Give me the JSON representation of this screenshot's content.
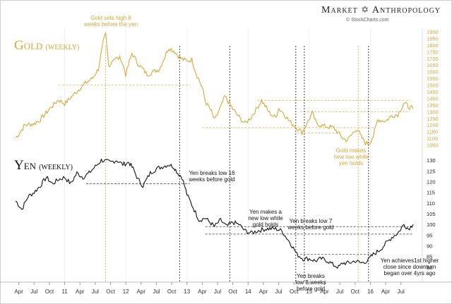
{
  "brand": {
    "word1": "Market",
    "word2": "Anthropology",
    "credit": "© StockCharts.com"
  },
  "chart_data": [
    {
      "type": "line",
      "panel": "top",
      "title": "Gold",
      "subtitle": "(WEEKLY)",
      "series_color": "#d8a838",
      "ylim": [
        1000,
        1900
      ],
      "yticks": [
        1050,
        1100,
        1150,
        1200,
        1250,
        1300,
        1350,
        1400,
        1450,
        1500,
        1550,
        1600,
        1650,
        1700,
        1750,
        1800,
        1850,
        1900
      ],
      "points": [
        [
          2010.2,
          1102
        ],
        [
          2010.35,
          1200
        ],
        [
          2010.5,
          1210
        ],
        [
          2010.6,
          1240
        ],
        [
          2010.75,
          1320
        ],
        [
          2010.9,
          1390
        ],
        [
          2011.0,
          1360
        ],
        [
          2011.15,
          1430
        ],
        [
          2011.3,
          1500
        ],
        [
          2011.45,
          1550
        ],
        [
          2011.55,
          1620
        ],
        [
          2011.63,
          1820
        ],
        [
          2011.67,
          1880
        ],
        [
          2011.72,
          1640
        ],
        [
          2011.8,
          1700
        ],
        [
          2011.92,
          1700
        ],
        [
          2012.0,
          1580
        ],
        [
          2012.1,
          1740
        ],
        [
          2012.2,
          1660
        ],
        [
          2012.35,
          1580
        ],
        [
          2012.45,
          1600
        ],
        [
          2012.55,
          1620
        ],
        [
          2012.7,
          1780
        ],
        [
          2012.78,
          1760
        ],
        [
          2012.9,
          1700
        ],
        [
          2013.0,
          1680
        ],
        [
          2013.08,
          1690
        ],
        [
          2013.15,
          1590
        ],
        [
          2013.25,
          1480
        ],
        [
          2013.3,
          1380
        ],
        [
          2013.4,
          1300
        ],
        [
          2013.45,
          1235
        ],
        [
          2013.55,
          1330
        ],
        [
          2013.62,
          1415
        ],
        [
          2013.75,
          1320
        ],
        [
          2013.85,
          1260
        ],
        [
          2013.95,
          1210
        ],
        [
          2014.05,
          1260
        ],
        [
          2014.15,
          1330
        ],
        [
          2014.22,
          1385
        ],
        [
          2014.35,
          1290
        ],
        [
          2014.45,
          1255
        ],
        [
          2014.5,
          1325
        ],
        [
          2014.58,
          1290
        ],
        [
          2014.68,
          1225
        ],
        [
          2014.8,
          1180
        ],
        [
          2014.88,
          1145
        ],
        [
          2014.95,
          1200
        ],
        [
          2015.05,
          1290
        ],
        [
          2015.12,
          1210
        ],
        [
          2015.25,
          1190
        ],
        [
          2015.4,
          1180
        ],
        [
          2015.55,
          1100
        ],
        [
          2015.62,
          1085
        ],
        [
          2015.78,
          1175
        ],
        [
          2015.85,
          1110
        ],
        [
          2015.92,
          1065
        ],
        [
          2015.98,
          1060
        ],
        [
          2016.05,
          1120
        ],
        [
          2016.12,
          1240
        ],
        [
          2016.25,
          1230
        ],
        [
          2016.35,
          1270
        ],
        [
          2016.45,
          1280
        ],
        [
          2016.55,
          1365
        ],
        [
          2016.62,
          1340
        ],
        [
          2016.7,
          1320
        ]
      ],
      "annotations": [
        {
          "text_lines": [
            "Gold sets high 8",
            "weeks before the yen"
          ],
          "color": "#d8a838"
        },
        {
          "text_lines": [
            "Gold makes",
            "new low while",
            "yen holds"
          ],
          "color": "#d8a838"
        }
      ]
    },
    {
      "type": "line",
      "panel": "bottom",
      "title": "Yen",
      "subtitle": "(WEEKLY)",
      "series_color": "#111111",
      "ylim": [
        78,
        133
      ],
      "yticks": [
        80,
        85,
        90,
        95,
        100,
        105,
        110,
        115,
        120,
        125,
        130
      ],
      "points": [
        [
          2010.2,
          111
        ],
        [
          2010.3,
          107
        ],
        [
          2010.4,
          113
        ],
        [
          2010.5,
          115
        ],
        [
          2010.6,
          118
        ],
        [
          2010.7,
          122
        ],
        [
          2010.8,
          119
        ],
        [
          2010.9,
          121
        ],
        [
          2011.0,
          122
        ],
        [
          2011.1,
          119
        ],
        [
          2011.2,
          124
        ],
        [
          2011.3,
          122
        ],
        [
          2011.4,
          124
        ],
        [
          2011.5,
          127
        ],
        [
          2011.6,
          130
        ],
        [
          2011.75,
          129
        ],
        [
          2011.85,
          130
        ],
        [
          2011.95,
          128
        ],
        [
          2012.05,
          129
        ],
        [
          2012.12,
          126
        ],
        [
          2012.2,
          121
        ],
        [
          2012.28,
          118
        ],
        [
          2012.4,
          124
        ],
        [
          2012.5,
          126
        ],
        [
          2012.6,
          127
        ],
        [
          2012.7,
          128
        ],
        [
          2012.78,
          127
        ],
        [
          2012.85,
          124
        ],
        [
          2012.92,
          122
        ],
        [
          2013.0,
          114
        ],
        [
          2013.1,
          108
        ],
        [
          2013.2,
          102
        ],
        [
          2013.3,
          103
        ],
        [
          2013.45,
          99
        ],
        [
          2013.55,
          102
        ],
        [
          2013.65,
          99
        ],
        [
          2013.75,
          101
        ],
        [
          2013.85,
          100
        ],
        [
          2013.95,
          97
        ],
        [
          2014.05,
          96
        ],
        [
          2014.15,
          97
        ],
        [
          2014.3,
          98
        ],
        [
          2014.45,
          98
        ],
        [
          2014.55,
          97
        ],
        [
          2014.65,
          93
        ],
        [
          2014.72,
          90
        ],
        [
          2014.8,
          86
        ],
        [
          2014.9,
          84
        ],
        [
          2015.0,
          84
        ],
        [
          2015.1,
          83
        ],
        [
          2015.2,
          84
        ],
        [
          2015.3,
          83
        ],
        [
          2015.4,
          81
        ],
        [
          2015.48,
          80
        ],
        [
          2015.55,
          82
        ],
        [
          2015.65,
          82
        ],
        [
          2015.75,
          83
        ],
        [
          2015.85,
          82
        ],
        [
          2015.95,
          83
        ],
        [
          2016.05,
          86
        ],
        [
          2016.15,
          88
        ],
        [
          2016.25,
          91
        ],
        [
          2016.35,
          94
        ],
        [
          2016.45,
          96
        ],
        [
          2016.55,
          100
        ],
        [
          2016.62,
          98
        ],
        [
          2016.7,
          100
        ]
      ],
      "annotations": [
        {
          "text_lines": [
            "Yen breaks low 16",
            "weeks before gold"
          ]
        },
        {
          "text_lines": [
            "Yen makes a",
            "new low while",
            "gold holds"
          ]
        },
        {
          "text_lines": [
            "Yen breaks low 7",
            "weeks before gold"
          ]
        },
        {
          "text_lines": [
            "Yen breaks",
            "low 8 weeks",
            "before gold"
          ]
        },
        {
          "text_lines": [
            "Yen achieves1st higher",
            "close since downturn",
            "began over 4yrs ago"
          ]
        }
      ]
    }
  ],
  "x_axis": {
    "range": [
      2010.15,
      2016.85
    ],
    "ticks": [
      {
        "label": "Apr",
        "x": 2010.25
      },
      {
        "label": "Jul",
        "x": 2010.5
      },
      {
        "label": "Oct",
        "x": 2010.75
      },
      {
        "label": "11",
        "x": 2011.0
      },
      {
        "label": "Apr",
        "x": 2011.25
      },
      {
        "label": "Jul",
        "x": 2011.5
      },
      {
        "label": "Oct",
        "x": 2011.75
      },
      {
        "label": "12",
        "x": 2012.0
      },
      {
        "label": "Apr",
        "x": 2012.25
      },
      {
        "label": "Jul",
        "x": 2012.5
      },
      {
        "label": "Oct",
        "x": 2012.75
      },
      {
        "label": "13",
        "x": 2013.0
      },
      {
        "label": "Apr",
        "x": 2013.25
      },
      {
        "label": "Jul",
        "x": 2013.5
      },
      {
        "label": "Oct",
        "x": 2013.75
      },
      {
        "label": "14",
        "x": 2014.0
      },
      {
        "label": "Apr",
        "x": 2014.25
      },
      {
        "label": "Jul",
        "x": 2014.5
      },
      {
        "label": "Oct",
        "x": 2014.75
      },
      {
        "label": "15",
        "x": 2015.0
      },
      {
        "label": "Apr",
        "x": 2015.25
      },
      {
        "label": "Jul",
        "x": 2015.5
      },
      {
        "label": "Oct",
        "x": 2015.75
      },
      {
        "label": "16",
        "x": 2016.0
      },
      {
        "label": "Apr",
        "x": 2016.25
      },
      {
        "label": "Jul",
        "x": 2016.5
      }
    ]
  },
  "reference_lines": {
    "gold_levels": [
      {
        "y": 1500,
        "x_from": 2010.9,
        "x_to": 2013.05
      },
      {
        "y": 1385,
        "x_from": 2014.15,
        "x_to": 2016.65
      },
      {
        "y": 1300,
        "x_from": 2014.85,
        "x_to": 2016.65
      },
      {
        "y": 1180,
        "x_from": 2013.25,
        "x_to": 2016.05
      },
      {
        "y": 1140,
        "x_from": 2014.8,
        "x_to": 2015.45
      }
    ],
    "yen_levels": [
      {
        "y": 119,
        "x_from": 2011.35,
        "x_to": 2013.05
      },
      {
        "y": 99,
        "x_from": 2013.3,
        "x_to": 2016.7
      },
      {
        "y": 95.5,
        "x_from": 2013.3,
        "x_to": 2016.7
      },
      {
        "y": 86,
        "x_from": 2014.85,
        "x_to": 2016.05
      }
    ],
    "vertical_dates": [
      {
        "x": 2011.67,
        "color": "#d8a838",
        "panel": "both"
      },
      {
        "x": 2012.88,
        "color": "#111111",
        "panel": "both"
      },
      {
        "x": 2013.7,
        "color": "#111111",
        "panel": "both"
      },
      {
        "x": 2014.78,
        "color": "#111111",
        "panel": "both"
      },
      {
        "x": 2014.92,
        "color": "#111111",
        "panel": "both"
      },
      {
        "x": 2015.8,
        "color": "#d8a838",
        "panel": "both"
      },
      {
        "x": 2015.97,
        "color": "#111111",
        "panel": "both"
      }
    ]
  }
}
